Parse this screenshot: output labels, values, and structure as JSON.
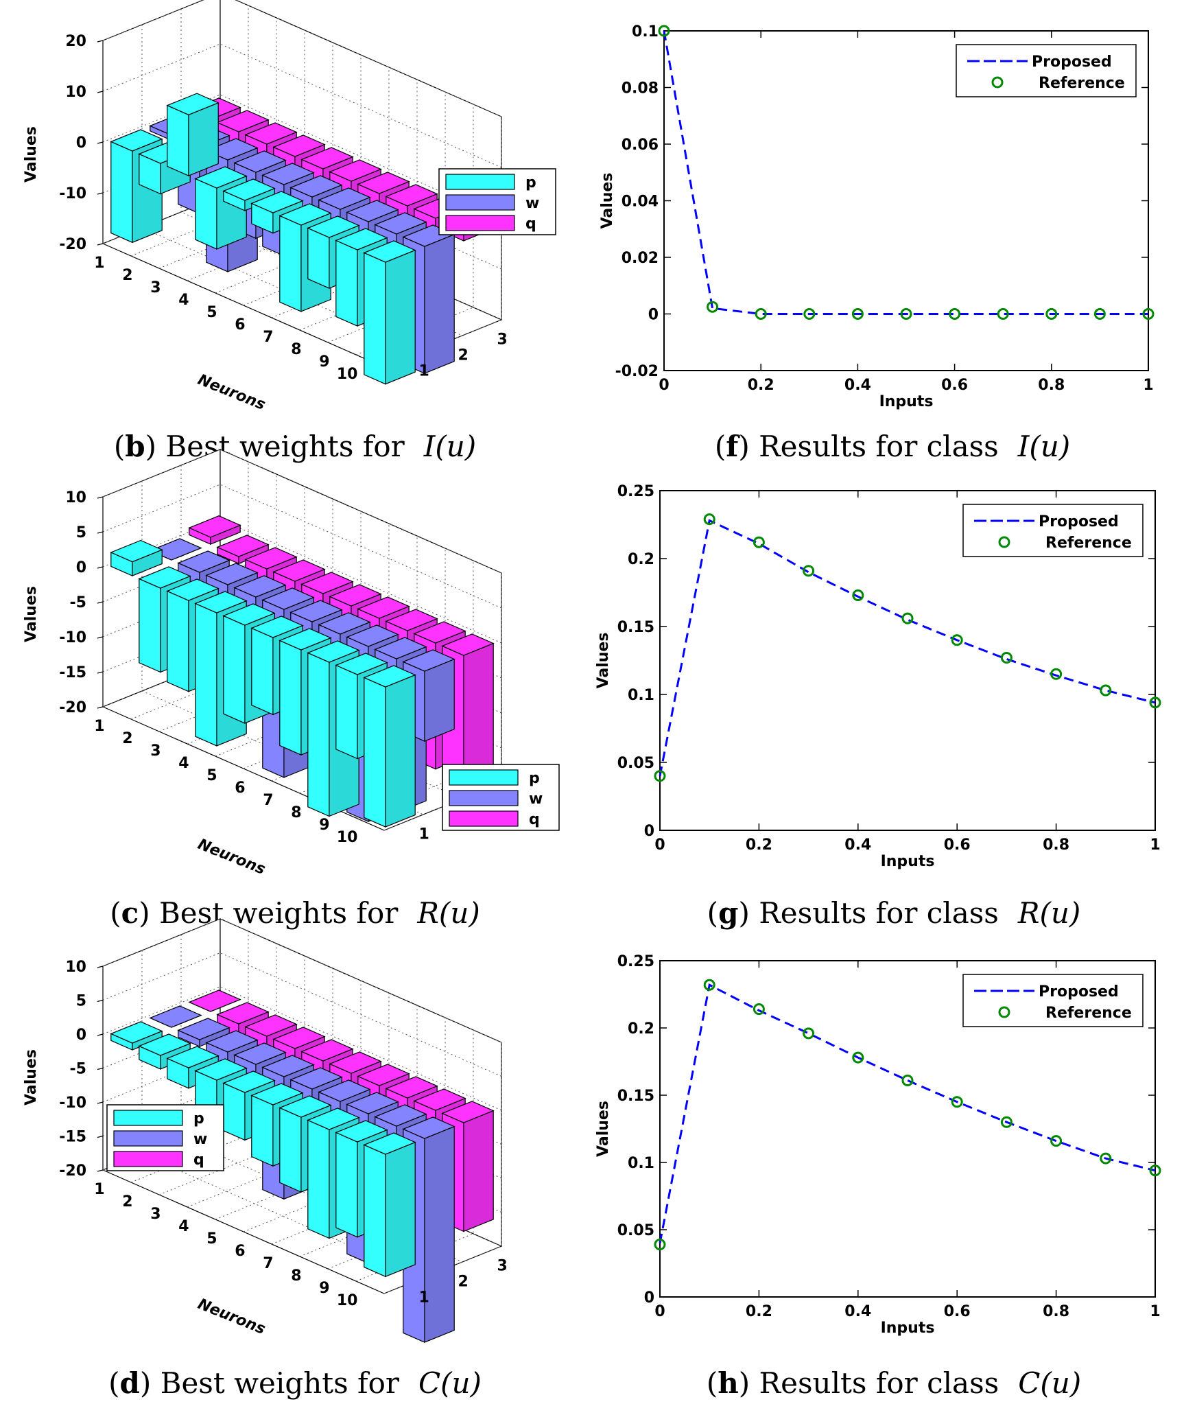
{
  "colors": {
    "p": "#33ffff",
    "w": "#8484ff",
    "q": "#ff33ff",
    "proposed": "#0000ff",
    "reference": "#008800"
  },
  "chart_data": [
    {
      "id": "b",
      "type": "bar3d",
      "kind": "bar",
      "caption": {
        "letter": "b",
        "text": "Best weights for",
        "math": "I(u)"
      },
      "ylabel": "Values",
      "xlabel": "Neurons",
      "zticks": [
        "20",
        "10",
        "0",
        "-10",
        "-20"
      ],
      "zlim": [
        -20,
        20
      ],
      "neurons": [
        "1",
        "2",
        "3",
        "4",
        "5",
        "6",
        "7",
        "8",
        "9",
        "10"
      ],
      "params": [
        "1",
        "2",
        "3"
      ],
      "legend": [
        "p",
        "w",
        "q"
      ],
      "series": [
        {
          "name": "p",
          "values": [
            -18,
            -6,
            12,
            -12,
            -2,
            -4,
            -17,
            -10,
            -15,
            -24
          ]
        },
        {
          "name": "w",
          "values": [
            -1,
            -13,
            -22,
            -13,
            -14,
            -12,
            -12,
            -6,
            -8,
            -25
          ]
        },
        {
          "name": "q",
          "values": [
            -4,
            -6,
            -6,
            -8,
            -10,
            -12,
            -14,
            -9,
            -5,
            -2
          ]
        }
      ]
    },
    {
      "id": "c",
      "type": "bar3d",
      "kind": "bar",
      "caption": {
        "letter": "c",
        "text": "Best weights for",
        "math": "R(u)"
      },
      "ylabel": "Values",
      "xlabel": "Neurons",
      "zticks": [
        "10",
        "5",
        "0",
        "-5",
        "-10",
        "-15",
        "-20"
      ],
      "zlim": [
        -20,
        10
      ],
      "neurons": [
        "1",
        "2",
        "3",
        "4",
        "5",
        "6",
        "7",
        "8",
        "9",
        "10"
      ],
      "params": [
        "1",
        "2",
        "3"
      ],
      "legend": [
        "p",
        "w",
        "q"
      ],
      "series": [
        {
          "name": "p",
          "values": [
            2,
            -12,
            -13,
            -19,
            -14,
            -11,
            -15,
            -22,
            -12,
            -20
          ]
        },
        {
          "name": "w",
          "values": [
            0,
            -3,
            -4,
            -7,
            -24,
            -10,
            -18,
            -25,
            -22,
            -10
          ]
        },
        {
          "name": "q",
          "values": [
            1,
            -1,
            -2,
            -3,
            -5,
            -7,
            -17,
            -20,
            -18,
            -22
          ]
        }
      ]
    },
    {
      "id": "d",
      "type": "bar3d",
      "kind": "bar",
      "caption": {
        "letter": "d",
        "text": "Best weights for",
        "math": "C(u)"
      },
      "ylabel": "Values",
      "xlabel": "Neurons",
      "zticks": [
        "10",
        "5",
        "0",
        "-5",
        "-10",
        "-15",
        "-20"
      ],
      "zlim": [
        -20,
        10
      ],
      "neurons": [
        "1",
        "2",
        "3",
        "4",
        "5",
        "6",
        "7",
        "8",
        "9",
        "10"
      ],
      "params": [
        "1",
        "2",
        "3"
      ],
      "legend": [
        "p",
        "w",
        "q"
      ],
      "series": [
        {
          "name": "p",
          "values": [
            -1,
            -2,
            -3,
            -8,
            -7,
            -9,
            -11,
            -16,
            -14,
            -18
          ]
        },
        {
          "name": "w",
          "values": [
            0,
            -1,
            -4,
            -6,
            -18,
            -9,
            -15,
            -22,
            -20,
            -30
          ]
        },
        {
          "name": "q",
          "values": [
            0,
            -2,
            -3,
            -5,
            -7,
            -8,
            -10,
            -12,
            -14,
            -16
          ]
        }
      ]
    },
    {
      "id": "f",
      "type": "line",
      "caption": {
        "letter": "f",
        "text": "Results for class",
        "math": "I(u)"
      },
      "xlabel": "Inputs",
      "ylabel": "Values",
      "xlim": [
        0,
        1
      ],
      "ylim": [
        -0.02,
        0.1
      ],
      "xticks": [
        "0",
        "0.2",
        "0.4",
        "0.6",
        "0.8",
        "1"
      ],
      "yticks": [
        "0.1",
        "0.08",
        "0.06",
        "0.04",
        "0.02",
        "0",
        "-0.02"
      ],
      "x": [
        0,
        0.1,
        0.2,
        0.3,
        0.4,
        0.5,
        0.6,
        0.7,
        0.8,
        0.9,
        1.0
      ],
      "series": [
        {
          "name": "Proposed",
          "values": [
            0.1,
            0.002,
            0,
            0,
            0,
            0,
            0,
            0,
            0,
            0,
            0
          ]
        },
        {
          "name": "Reference",
          "values": [
            0.1,
            0.0025,
            0,
            0,
            0,
            0,
            0,
            0,
            0,
            0,
            0
          ]
        }
      ]
    },
    {
      "id": "g",
      "type": "line",
      "caption": {
        "letter": "g",
        "text": "Results for class",
        "math": "R(u)"
      },
      "xlabel": "Inputs",
      "ylabel": "Values",
      "xlim": [
        0,
        1
      ],
      "ylim": [
        0,
        0.25
      ],
      "xticks": [
        "0",
        "0.2",
        "0.4",
        "0.6",
        "0.8",
        "1"
      ],
      "yticks": [
        "0.25",
        "0.2",
        "0.15",
        "0.1",
        "0.05",
        "0"
      ],
      "x": [
        0,
        0.1,
        0.2,
        0.3,
        0.4,
        0.5,
        0.6,
        0.7,
        0.8,
        0.9,
        1.0
      ],
      "series": [
        {
          "name": "Proposed",
          "values": [
            0.04,
            0.228,
            0.211,
            0.19,
            0.172,
            0.155,
            0.14,
            0.126,
            0.114,
            0.103,
            0.094
          ]
        },
        {
          "name": "Reference",
          "values": [
            0.04,
            0.229,
            0.212,
            0.191,
            0.173,
            0.156,
            0.14,
            0.127,
            0.115,
            0.103,
            0.094
          ]
        }
      ]
    },
    {
      "id": "h",
      "type": "line",
      "caption": {
        "letter": "h",
        "text": "Results for class",
        "math": "C(u)"
      },
      "xlabel": "Inputs",
      "ylabel": "Values",
      "xlim": [
        0,
        1
      ],
      "ylim": [
        0,
        0.25
      ],
      "xticks": [
        "0",
        "0.2",
        "0.4",
        "0.6",
        "0.8",
        "1"
      ],
      "yticks": [
        "0.25",
        "0.2",
        "0.15",
        "0.1",
        "0.05",
        "0"
      ],
      "x": [
        0,
        0.1,
        0.2,
        0.3,
        0.4,
        0.5,
        0.6,
        0.7,
        0.8,
        0.9,
        1.0
      ],
      "series": [
        {
          "name": "Proposed",
          "values": [
            0.04,
            0.232,
            0.213,
            0.196,
            0.178,
            0.161,
            0.145,
            0.13,
            0.116,
            0.103,
            0.094
          ]
        },
        {
          "name": "Reference",
          "values": [
            0.039,
            0.232,
            0.214,
            0.196,
            0.178,
            0.161,
            0.145,
            0.13,
            0.116,
            0.103,
            0.094
          ]
        }
      ]
    }
  ]
}
